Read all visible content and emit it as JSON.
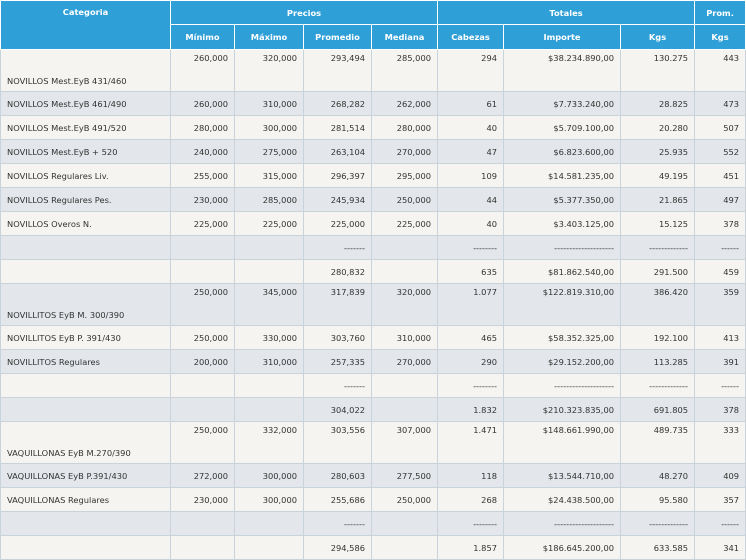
{
  "headers": {
    "categoria": "Categoria",
    "precios": "Precios",
    "totales": "Totales",
    "prom": "Prom.",
    "minimo": "Mínimo",
    "maximo": "Máximo",
    "promedio": "Promedio",
    "mediana": "Mediana",
    "cabezas": "Cabezas",
    "importe": "Importe",
    "kgs": "Kgs",
    "prom_kgs": "Kgs"
  },
  "rows": [
    {
      "cat": "NOVILLOS Mest.EyB 431/460",
      "min": "260,000",
      "max": "320,000",
      "prom": "293,494",
      "med": "285,000",
      "cab": "294",
      "imp": "$38.234.890,00",
      "kgs": "130.275",
      "pk": "443"
    },
    {
      "cat": "NOVILLOS Mest.EyB 461/490",
      "min": "260,000",
      "max": "310,000",
      "prom": "268,282",
      "med": "262,000",
      "cab": "61",
      "imp": "$7.733.240,00",
      "kgs": "28.825",
      "pk": "473"
    },
    {
      "cat": "NOVILLOS Mest.EyB 491/520",
      "min": "280,000",
      "max": "300,000",
      "prom": "281,514",
      "med": "280,000",
      "cab": "40",
      "imp": "$5.709.100,00",
      "kgs": "20.280",
      "pk": "507"
    },
    {
      "cat": "NOVILLOS Mest.EyB + 520",
      "min": "240,000",
      "max": "275,000",
      "prom": "263,104",
      "med": "270,000",
      "cab": "47",
      "imp": "$6.823.600,00",
      "kgs": "25.935",
      "pk": "552"
    },
    {
      "cat": "NOVILLOS Regulares Liv.",
      "min": "255,000",
      "max": "315,000",
      "prom": "296,397",
      "med": "295,000",
      "cab": "109",
      "imp": "$14.581.235,00",
      "kgs": "49.195",
      "pk": "451"
    },
    {
      "cat": "NOVILLOS Regulares Pes.",
      "min": "230,000",
      "max": "285,000",
      "prom": "245,934",
      "med": "250,000",
      "cab": "44",
      "imp": "$5.377.350,00",
      "kgs": "21.865",
      "pk": "497"
    },
    {
      "cat": "NOVILLOS Overos N.",
      "min": "225,000",
      "max": "225,000",
      "prom": "225,000",
      "med": "225,000",
      "cab": "40",
      "imp": "$3.403.125,00",
      "kgs": "15.125",
      "pk": "378"
    },
    {
      "cat": "",
      "min": "",
      "max": "",
      "prom": "-------",
      "med": "",
      "cab": "--------",
      "imp": "--------------------",
      "kgs": "-------------",
      "pk": "------"
    },
    {
      "cat": "",
      "min": "",
      "max": "",
      "prom": "280,832",
      "med": "",
      "cab": "635",
      "imp": "$81.862.540,00",
      "kgs": "291.500",
      "pk": "459"
    },
    {
      "cat": "NOVILLITOS EyB M. 300/390",
      "min": "250,000",
      "max": "345,000",
      "prom": "317,839",
      "med": "320,000",
      "cab": "1.077",
      "imp": "$122.819.310,00",
      "kgs": "386.420",
      "pk": "359"
    },
    {
      "cat": "NOVILLITOS EyB P. 391/430",
      "min": "250,000",
      "max": "330,000",
      "prom": "303,760",
      "med": "310,000",
      "cab": "465",
      "imp": "$58.352.325,00",
      "kgs": "192.100",
      "pk": "413"
    },
    {
      "cat": "NOVILLITOS Regulares",
      "min": "200,000",
      "max": "310,000",
      "prom": "257,335",
      "med": "270,000",
      "cab": "290",
      "imp": "$29.152.200,00",
      "kgs": "113.285",
      "pk": "391"
    },
    {
      "cat": "",
      "min": "",
      "max": "",
      "prom": "-------",
      "med": "",
      "cab": "--------",
      "imp": "--------------------",
      "kgs": "-------------",
      "pk": "------"
    },
    {
      "cat": "",
      "min": "",
      "max": "",
      "prom": "304,022",
      "med": "",
      "cab": "1.832",
      "imp": "$210.323.835,00",
      "kgs": "691.805",
      "pk": "378"
    },
    {
      "cat": "VAQUILLONAS EyB M.270/390",
      "min": "250,000",
      "max": "332,000",
      "prom": "303,556",
      "med": "307,000",
      "cab": "1.471",
      "imp": "$148.661.990,00",
      "kgs": "489.735",
      "pk": "333"
    },
    {
      "cat": "VAQUILLONAS EyB P.391/430",
      "min": "272,000",
      "max": "300,000",
      "prom": "280,603",
      "med": "277,500",
      "cab": "118",
      "imp": "$13.544.710,00",
      "kgs": "48.270",
      "pk": "409"
    },
    {
      "cat": "VAQUILLONAS Regulares",
      "min": "230,000",
      "max": "300,000",
      "prom": "255,686",
      "med": "250,000",
      "cab": "268",
      "imp": "$24.438.500,00",
      "kgs": "95.580",
      "pk": "357"
    },
    {
      "cat": "",
      "min": "",
      "max": "",
      "prom": "-------",
      "med": "",
      "cab": "--------",
      "imp": "--------------------",
      "kgs": "-------------",
      "pk": "------"
    },
    {
      "cat": "",
      "min": "",
      "max": "",
      "prom": "294,586",
      "med": "",
      "cab": "1.857",
      "imp": "$186.645.200,00",
      "kgs": "633.585",
      "pk": "341"
    }
  ]
}
